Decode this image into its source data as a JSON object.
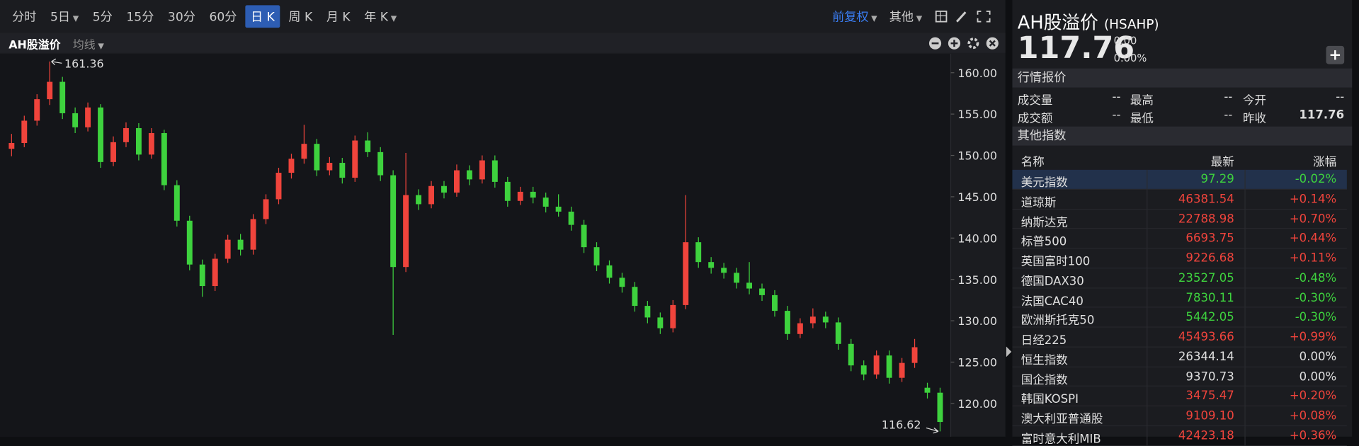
{
  "toolbar": {
    "periods": [
      {
        "label": "分时"
      },
      {
        "label": "5日",
        "menu": true
      },
      {
        "label": "5分"
      },
      {
        "label": "15分"
      },
      {
        "label": "30分"
      },
      {
        "label": "60分"
      },
      {
        "label": "日 K"
      },
      {
        "label": "周 K"
      },
      {
        "label": "月 K"
      },
      {
        "label": "年 K",
        "menu": true
      }
    ],
    "active_index": 6,
    "adjust": "前复权",
    "more": "其他"
  },
  "chart_data": {
    "type": "candlestick",
    "title": "AH股溢价",
    "indicator": "均线",
    "up_color": "#f0443c",
    "down_color": "#3ed23e",
    "ylim": [
      116.4,
      162.3
    ],
    "yticks": [
      {
        "value": 120,
        "label": "120.00"
      },
      {
        "value": 125,
        "label": "125.00"
      },
      {
        "value": 130,
        "label": "130.00"
      },
      {
        "value": 135,
        "label": "135.00"
      },
      {
        "value": 140,
        "label": "140.00"
      },
      {
        "value": 145,
        "label": "145.00"
      },
      {
        "value": 150,
        "label": "150.00"
      },
      {
        "value": 155,
        "label": "155.00"
      },
      {
        "value": 160,
        "label": "160.00"
      }
    ],
    "max_index": 3,
    "min_index": 73,
    "ohlc": [
      [
        150.8,
        152.6,
        149.9,
        151.5
      ],
      [
        151.5,
        154.8,
        151.0,
        154.2
      ],
      [
        154.2,
        157.4,
        153.6,
        156.8
      ],
      [
        156.8,
        161.36,
        156.1,
        158.9
      ],
      [
        158.9,
        159.5,
        154.4,
        155.1
      ],
      [
        155.1,
        155.8,
        152.7,
        153.4
      ],
      [
        153.4,
        156.4,
        152.9,
        155.8
      ],
      [
        155.8,
        156.2,
        148.5,
        149.2
      ],
      [
        149.2,
        152.3,
        148.7,
        151.6
      ],
      [
        151.6,
        154.0,
        151.0,
        153.3
      ],
      [
        153.3,
        153.9,
        149.4,
        150.1
      ],
      [
        150.1,
        153.3,
        149.6,
        152.7
      ],
      [
        152.7,
        153.1,
        145.8,
        146.4
      ],
      [
        146.4,
        147.0,
        141.4,
        142.1
      ],
      [
        142.1,
        142.7,
        136.1,
        136.8
      ],
      [
        136.8,
        137.4,
        132.9,
        134.2
      ],
      [
        134.2,
        138.1,
        133.6,
        137.5
      ],
      [
        137.5,
        140.4,
        137.0,
        139.8
      ],
      [
        139.8,
        140.5,
        137.9,
        138.6
      ],
      [
        138.6,
        142.9,
        138.0,
        142.3
      ],
      [
        142.3,
        145.3,
        141.7,
        144.7
      ],
      [
        144.7,
        148.5,
        144.1,
        147.9
      ],
      [
        147.9,
        150.2,
        147.2,
        149.6
      ],
      [
        149.6,
        153.7,
        149.0,
        151.4
      ],
      [
        151.4,
        152.0,
        147.5,
        148.2
      ],
      [
        148.2,
        149.8,
        147.6,
        149.1
      ],
      [
        149.1,
        149.7,
        146.6,
        147.3
      ],
      [
        147.3,
        152.4,
        146.8,
        151.8
      ],
      [
        151.8,
        152.8,
        149.8,
        150.4
      ],
      [
        150.4,
        151.0,
        146.9,
        147.6
      ],
      [
        147.6,
        148.2,
        128.3,
        136.5
      ],
      [
        136.5,
        150.3,
        135.9,
        145.2
      ],
      [
        145.2,
        145.9,
        143.4,
        144.1
      ],
      [
        144.1,
        146.9,
        143.6,
        146.3
      ],
      [
        146.3,
        146.9,
        144.8,
        145.5
      ],
      [
        145.5,
        148.9,
        145.0,
        148.2
      ],
      [
        148.2,
        148.8,
        146.4,
        147.1
      ],
      [
        147.1,
        150.0,
        146.6,
        149.4
      ],
      [
        149.4,
        150.0,
        146.1,
        146.8
      ],
      [
        146.8,
        147.4,
        143.8,
        144.5
      ],
      [
        144.5,
        146.2,
        144.0,
        145.6
      ],
      [
        145.6,
        146.2,
        144.2,
        144.9
      ],
      [
        144.9,
        145.5,
        143.1,
        143.8
      ],
      [
        143.8,
        145.3,
        142.6,
        143.2
      ],
      [
        143.2,
        143.8,
        140.9,
        141.6
      ],
      [
        141.6,
        142.2,
        138.2,
        138.9
      ],
      [
        138.9,
        139.5,
        136.0,
        136.7
      ],
      [
        136.7,
        137.3,
        134.5,
        135.2
      ],
      [
        135.2,
        135.8,
        133.4,
        134.1
      ],
      [
        134.1,
        134.7,
        131.1,
        131.8
      ],
      [
        131.8,
        132.4,
        129.7,
        130.4
      ],
      [
        130.4,
        131.0,
        128.4,
        129.1
      ],
      [
        129.1,
        132.5,
        128.6,
        131.9
      ],
      [
        131.9,
        145.2,
        131.4,
        139.5
      ],
      [
        139.5,
        140.1,
        136.4,
        137.1
      ],
      [
        137.1,
        137.7,
        135.7,
        136.4
      ],
      [
        136.4,
        137.0,
        135.1,
        135.8
      ],
      [
        135.8,
        136.4,
        133.9,
        134.6
      ],
      [
        134.6,
        137.1,
        133.2,
        133.9
      ],
      [
        133.9,
        134.5,
        132.4,
        133.1
      ],
      [
        133.1,
        133.7,
        130.5,
        131.2
      ],
      [
        131.2,
        131.8,
        127.7,
        128.4
      ],
      [
        128.4,
        130.3,
        127.9,
        129.7
      ],
      [
        129.7,
        131.5,
        129.1,
        130.5
      ],
      [
        130.5,
        131.1,
        129.1,
        129.8
      ],
      [
        129.8,
        130.4,
        126.5,
        127.2
      ],
      [
        127.2,
        127.8,
        123.9,
        124.6
      ],
      [
        124.6,
        125.2,
        122.8,
        123.5
      ],
      [
        123.5,
        126.4,
        123.0,
        125.8
      ],
      [
        125.8,
        126.4,
        122.4,
        123.1
      ],
      [
        123.1,
        125.5,
        122.6,
        124.9
      ],
      [
        124.9,
        127.8,
        124.3,
        126.8
      ],
      [
        121.9,
        122.5,
        120.6,
        121.3
      ],
      [
        121.3,
        121.9,
        116.62,
        117.76
      ]
    ]
  },
  "quote_panel": {
    "name": "AH股溢价",
    "code": "(HSAHP)",
    "price": "117.76",
    "change": "0.00",
    "change_pct": "0.00%",
    "market_section": "行情报价",
    "stats": [
      [
        "成交量",
        "--",
        "最高",
        "--",
        "今开",
        "--"
      ],
      [
        "成交额",
        "--",
        "最低",
        "--",
        "昨收",
        "117.76"
      ]
    ],
    "index_section": "其他指数",
    "index_columns": [
      "名称",
      "最新",
      "涨幅"
    ],
    "selected_index": 0,
    "indices": [
      [
        "美元指数",
        "97.29",
        "-0.02%"
      ],
      [
        "道琼斯",
        "46381.54",
        "+0.14%"
      ],
      [
        "纳斯达克",
        "22788.98",
        "+0.70%"
      ],
      [
        "标普500",
        "6693.75",
        "+0.44%"
      ],
      [
        "英国富时100",
        "9226.68",
        "+0.11%"
      ],
      [
        "德国DAX30",
        "23527.05",
        "-0.48%"
      ],
      [
        "法国CAC40",
        "7830.11",
        "-0.30%"
      ],
      [
        "欧洲斯托克50",
        "5442.05",
        "-0.30%"
      ],
      [
        "日经225",
        "45493.66",
        "+0.99%"
      ],
      [
        "恒生指数",
        "26344.14",
        "0.00%"
      ],
      [
        "国企指数",
        "9370.73",
        "0.00%"
      ],
      [
        "韩国KOSPI",
        "3475.47",
        "+0.20%"
      ],
      [
        "澳大利亚普通股",
        "9109.10",
        "+0.08%"
      ],
      [
        "富时意大利MIB",
        "42423.18",
        "+0.36%"
      ]
    ]
  }
}
